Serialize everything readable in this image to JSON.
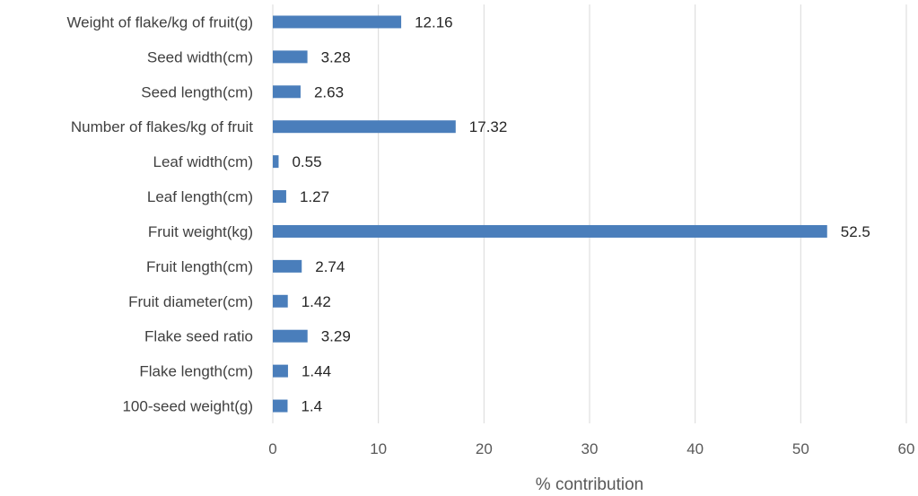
{
  "chart_data": {
    "type": "bar",
    "orientation": "horizontal",
    "categories": [
      "100-seed weight(g)",
      "Flake length(cm)",
      "Flake seed ratio",
      "Fruit diameter(cm)",
      "Fruit length(cm)",
      "Fruit weight(kg)",
      "Leaf length(cm)",
      "Leaf width(cm)",
      "Number of flakes/kg of fruit",
      "Seed length(cm)",
      "Seed width(cm)",
      "Weight of flake/kg of fruit(g)"
    ],
    "values": [
      1.4,
      1.44,
      3.29,
      1.42,
      2.74,
      52.5,
      1.27,
      0.55,
      17.32,
      2.63,
      3.28,
      12.16
    ],
    "value_labels": [
      "1.4",
      "1.44",
      "3.29",
      "1.42",
      "2.74",
      "52.5",
      "1.27",
      "0.55",
      "17.32",
      "2.63",
      "3.28",
      "12.16"
    ],
    "xlabel": "% contribution",
    "ylabel": "",
    "xlim": [
      0,
      60
    ],
    "xticks": [
      0,
      10,
      20,
      30,
      40,
      50,
      60
    ],
    "grid": "vertical",
    "legend": "none",
    "bar_color": "#4a7ebb",
    "grid_color": "#d9d9d9"
  }
}
